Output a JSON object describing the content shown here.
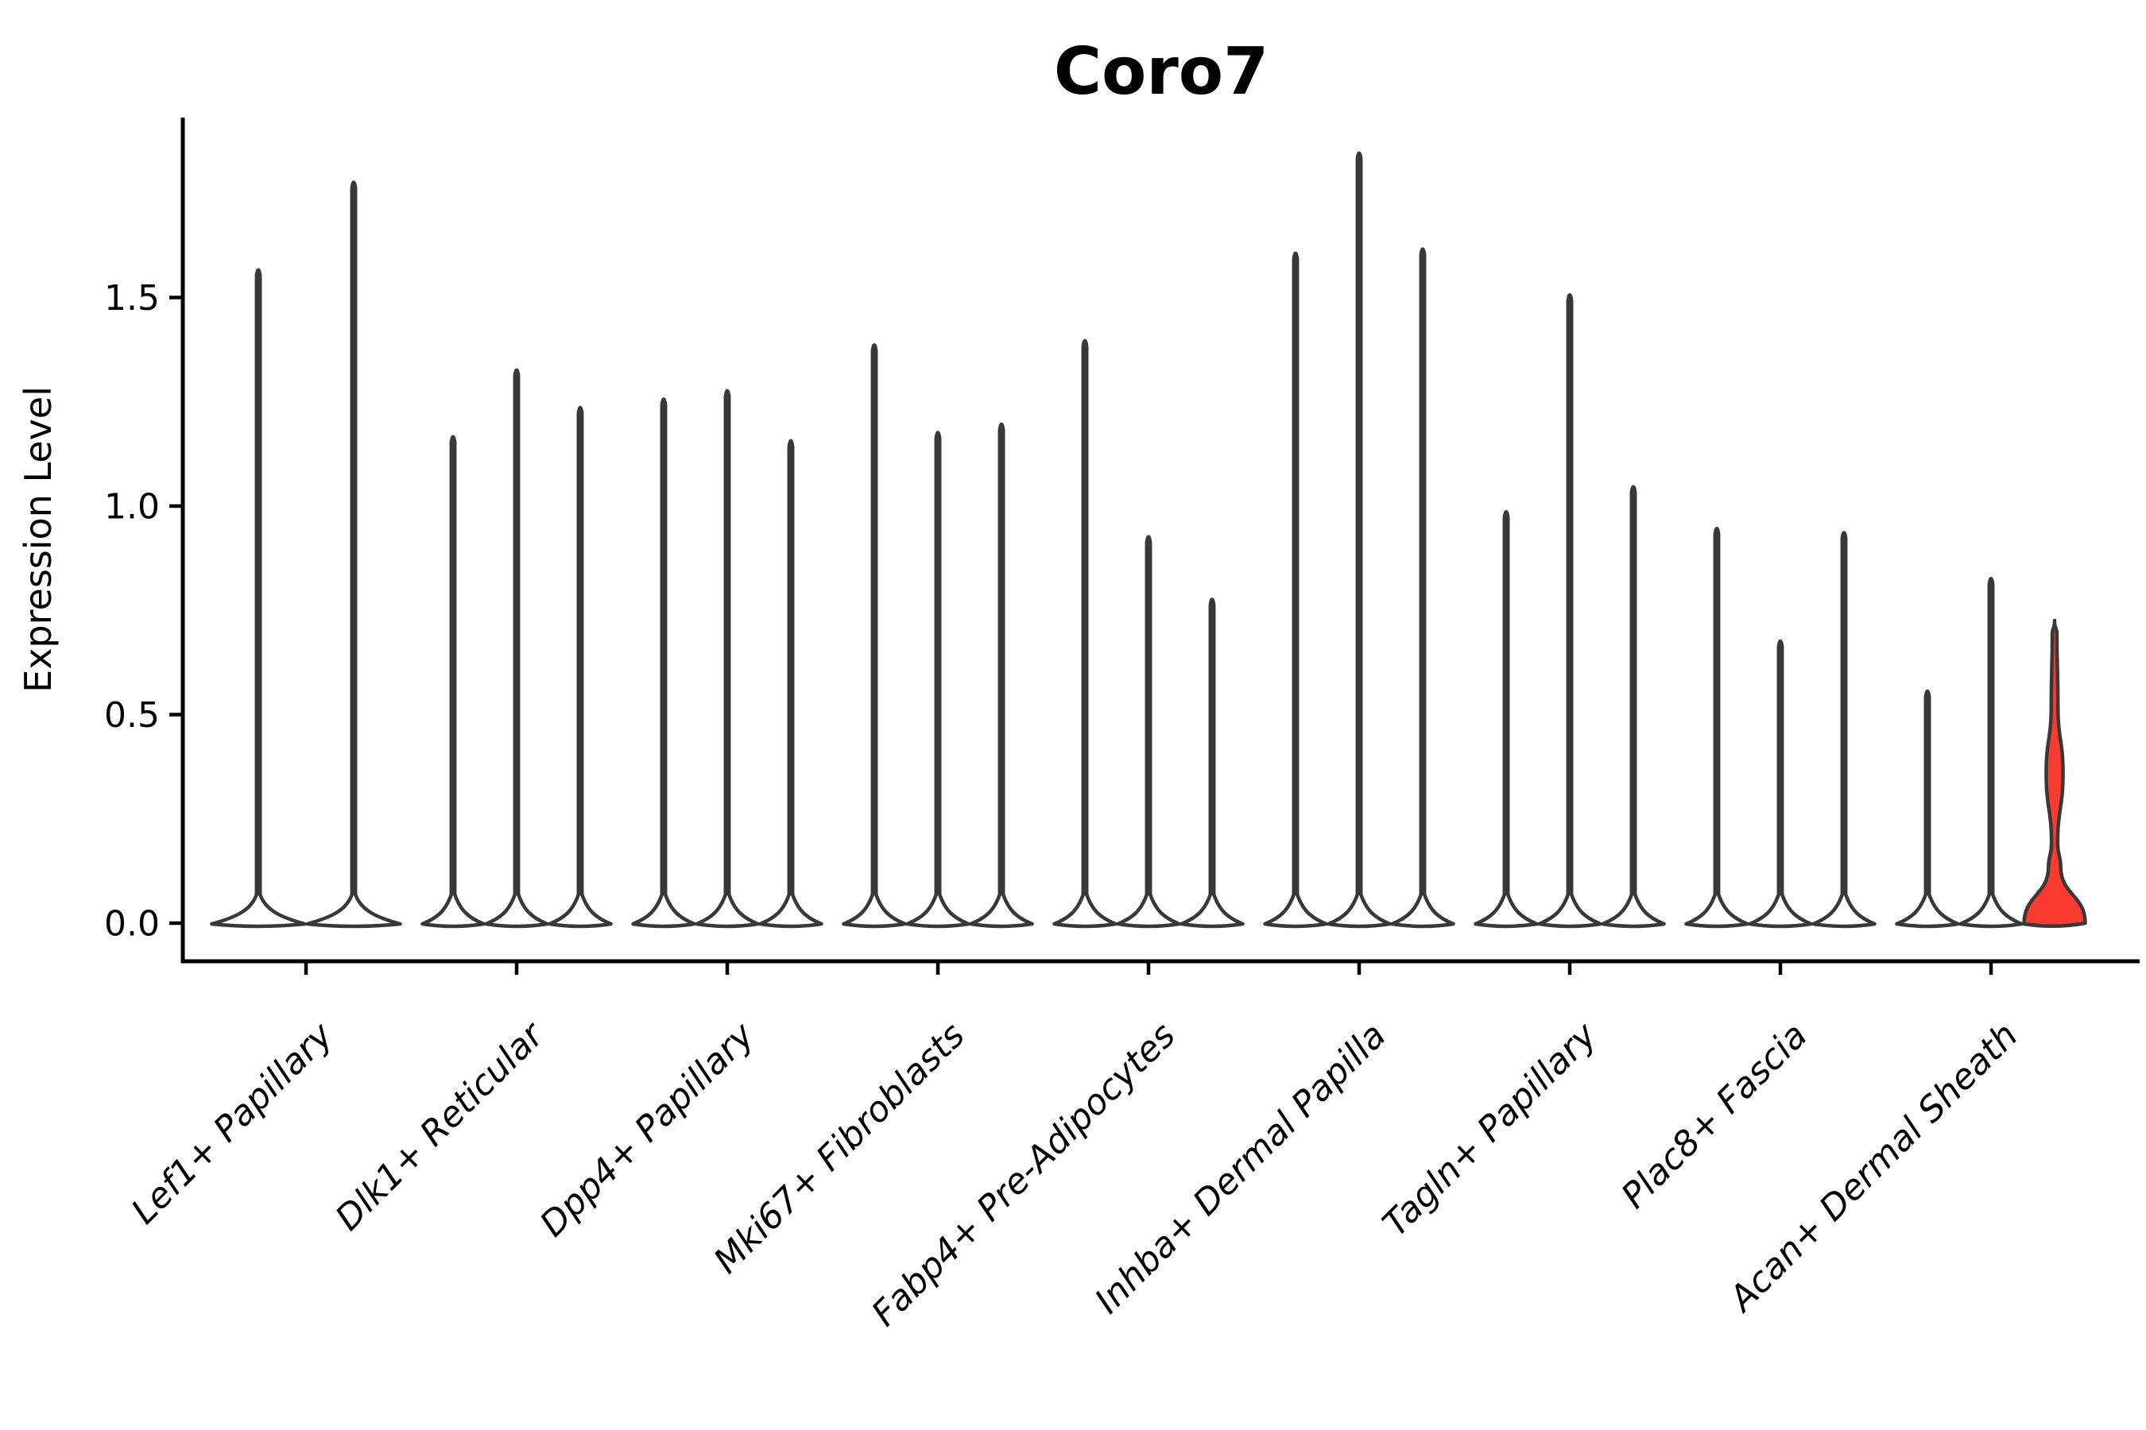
{
  "figure": {
    "kind": "violin-plot",
    "background": "#ffffff"
  },
  "chart_data": {
    "type": "violin",
    "title": "Coro7",
    "xlabel": "",
    "ylabel": "Expression Level",
    "yticks": [
      "0.0",
      "0.5",
      "1.0",
      "1.5"
    ],
    "ylim": [
      0,
      1.93
    ],
    "grid": false,
    "legend": "none",
    "categories": [
      {
        "label": "Lef1+ Papillary",
        "violins": [
          {
            "max": 1.57
          },
          {
            "max": 1.78
          }
        ]
      },
      {
        "label": "Dlk1+ Reticular",
        "violins": [
          {
            "max": 1.17
          },
          {
            "max": 1.33
          },
          {
            "max": 1.24
          }
        ]
      },
      {
        "label": "Dpp4+ Papillary",
        "violins": [
          {
            "max": 1.26
          },
          {
            "max": 1.28
          },
          {
            "max": 1.16
          }
        ]
      },
      {
        "label": "Mki67+ Fibroblasts",
        "violins": [
          {
            "max": 1.39
          },
          {
            "max": 1.18
          },
          {
            "max": 1.2
          }
        ]
      },
      {
        "label": "Fabp4+ Pre-Adipocytes",
        "violins": [
          {
            "max": 1.4
          },
          {
            "max": 0.93
          },
          {
            "max": 0.78
          }
        ]
      },
      {
        "label": "Inhba+ Dermal Papilla",
        "violins": [
          {
            "max": 1.61
          },
          {
            "max": 1.85
          },
          {
            "max": 1.62
          }
        ]
      },
      {
        "label": "Tagln+ Papillary",
        "violins": [
          {
            "max": 0.99
          },
          {
            "max": 1.51
          },
          {
            "max": 1.05
          }
        ]
      },
      {
        "label": "Plac8+ Fascia",
        "violins": [
          {
            "max": 0.95
          },
          {
            "max": 0.68
          },
          {
            "max": 0.94
          }
        ]
      },
      {
        "label": "Acan+ Dermal Sheath",
        "violins": [
          {
            "max": 0.56
          },
          {
            "max": 0.83
          },
          {
            "max": 0.72,
            "highlight": true,
            "profile": [
              [
                0,
                1.0
              ],
              [
                0.135,
                0.2
              ],
              [
                0.19,
                0.1
              ],
              [
                0.36,
                0.275
              ],
              [
                0.52,
                0.11
              ],
              [
                0.695,
                0.075
              ],
              [
                0.72,
                0.0
              ]
            ]
          }
        ]
      }
    ],
    "colors": {
      "violin_fill": "#ffffff",
      "highlight_fill": "#F93B30",
      "violin_stroke": "#383838",
      "axis": "#000000"
    }
  }
}
